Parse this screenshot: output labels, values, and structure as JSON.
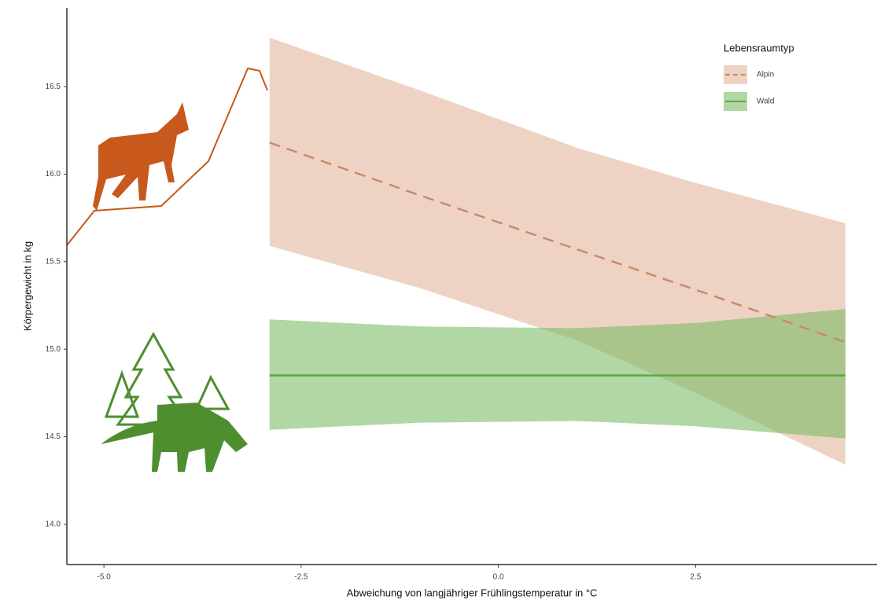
{
  "chart_data": {
    "type": "line",
    "xlabel": "Abweichung von langjähriger Frühlingstemperatur in °C",
    "ylabel": "Körpergewicht in kg",
    "xlim": [
      -5.47,
      4.8
    ],
    "ylim": [
      13.77,
      16.95
    ],
    "xticks": [
      {
        "value": -5,
        "label": "-5.0"
      },
      -2.5,
      {
        "value": 0,
        "label": "0.0"
      },
      2.5
    ],
    "yticks": [
      {
        "value": 14,
        "label": "14.0"
      },
      14.5,
      {
        "value": 15,
        "label": "15.0"
      },
      15.5,
      {
        "value": 16,
        "label": "16.0"
      },
      16.5
    ],
    "grid": false,
    "legend": {
      "title": "Lebensraumtyp",
      "position": "top-right"
    },
    "series": [
      {
        "name": "Alpin",
        "color": "#c98a6d",
        "band_color": "#e3b59c",
        "dash": true,
        "x": [
          -2.9,
          -1,
          1,
          2.5,
          4.4
        ],
        "values": [
          16.18,
          15.88,
          15.57,
          15.34,
          15.04
        ],
        "upper": [
          16.78,
          16.48,
          16.15,
          15.95,
          15.72
        ],
        "lower": [
          15.59,
          15.35,
          15.05,
          14.75,
          14.34
        ]
      },
      {
        "name": "Wald",
        "color": "#5aa845",
        "band_color": "#7dbd67",
        "dash": false,
        "x": [
          -2.9,
          -1,
          1,
          2.5,
          4.4
        ],
        "values": [
          14.85,
          14.85,
          14.85,
          14.85,
          14.85
        ],
        "upper": [
          15.17,
          15.13,
          15.12,
          15.15,
          15.23
        ],
        "lower": [
          14.54,
          14.58,
          14.59,
          14.56,
          14.49
        ]
      }
    ]
  }
}
